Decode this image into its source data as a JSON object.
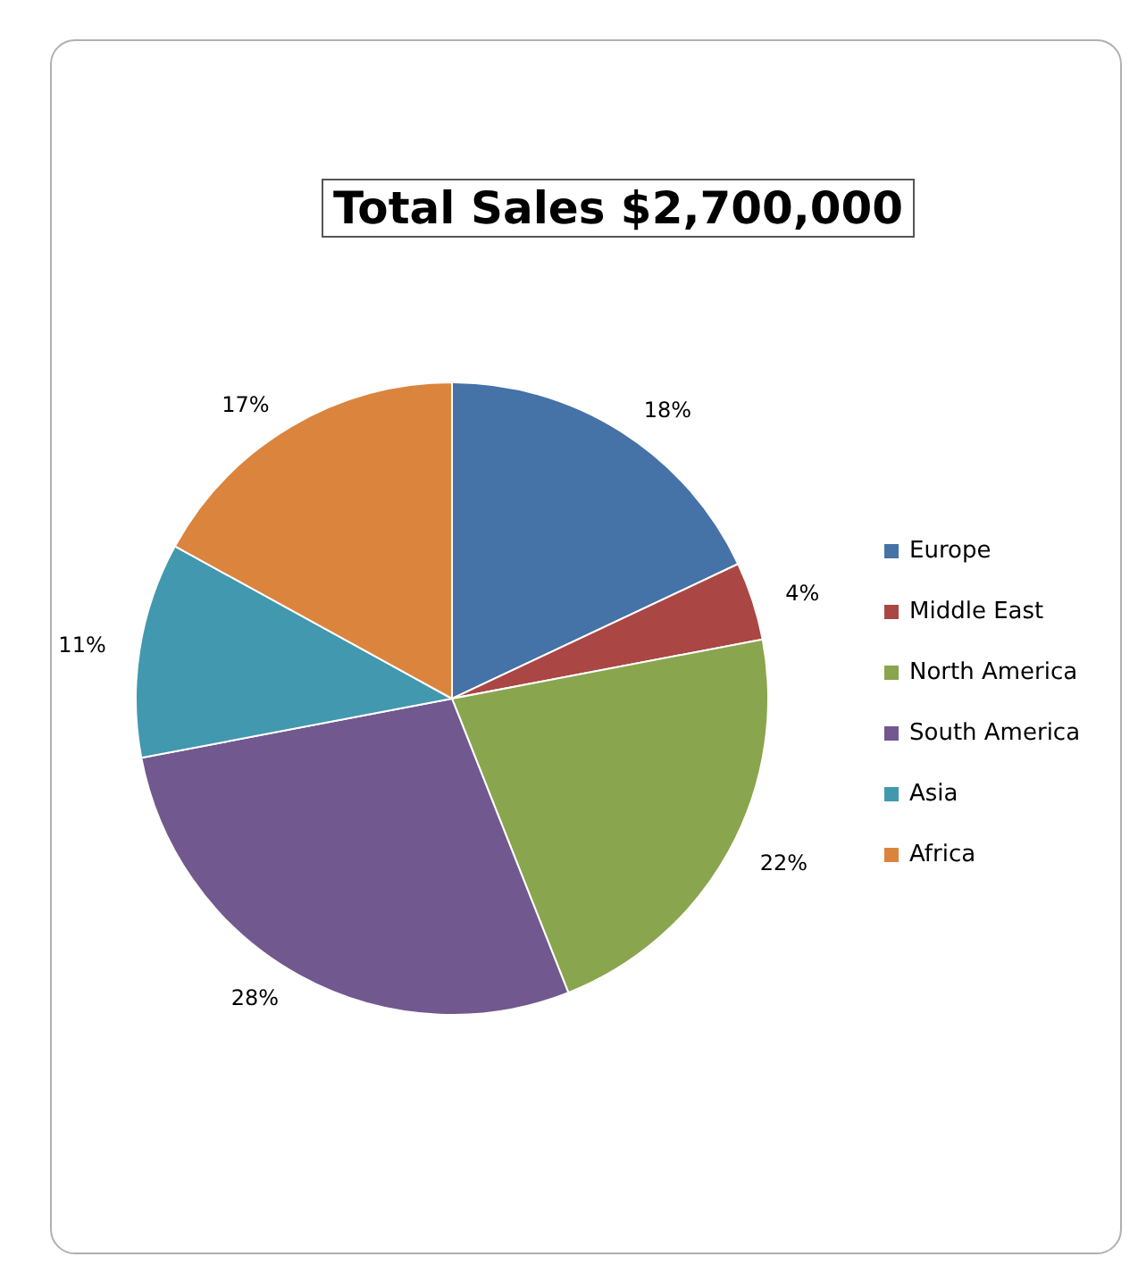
{
  "chart_data": {
    "type": "pie",
    "title": "Total Sales $2,700,000",
    "categories": [
      "Europe",
      "Middle East",
      "North America",
      "South America",
      "Asia",
      "Africa"
    ],
    "values": [
      18,
      4,
      22,
      28,
      11,
      17
    ],
    "colors": [
      "#4572a7",
      "#aa4643",
      "#89a54e",
      "#71588f",
      "#4198af",
      "#db843d"
    ],
    "value_labels": [
      "18%",
      "4%",
      "22%",
      "28%",
      "11%",
      "17%"
    ],
    "legend": "right"
  }
}
